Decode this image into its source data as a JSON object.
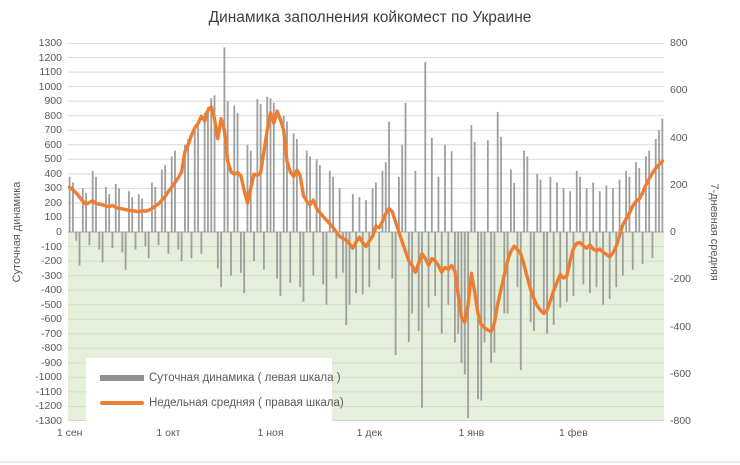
{
  "title": "Динамика заполнения койкомест по Украине",
  "colors": {
    "bar": "#9e9e9e",
    "line": "#ed7d31",
    "negative_area": "#e5efdb",
    "grid": "#d9d9d9",
    "grid_green": "#cfe0c0",
    "zero_line": "#a6a6a6",
    "edge_line": "#bfbfbf",
    "axis_text": "#595959",
    "title_text": "#3f3f3f"
  },
  "legend": [
    {
      "label": "Суточная динамика ( левая шкала )",
      "color": "#8f8f8f",
      "type": "bar"
    },
    {
      "label": "Недельная средняя ( правая шкала)",
      "color": "#ed7d31",
      "type": "line"
    }
  ],
  "chart_data": {
    "type": "bar+line",
    "title": "Динамика заполнения койкомест по Украине",
    "left_axis": {
      "label": "Суточная динамика",
      "min": -1300,
      "max": 1300,
      "step": 100
    },
    "right_axis": {
      "label": "7-дневная средняя",
      "min": -800,
      "max": 800,
      "step": 200
    },
    "x": {
      "unit": "day",
      "n_days": 181,
      "tick_labels": [
        "1 сен",
        "1 окт",
        "1 ноя",
        "1 дек",
        "1 янв",
        "1 фев"
      ],
      "tick_day_index": [
        0,
        30,
        61,
        91,
        122,
        153
      ]
    },
    "series": [
      {
        "name": "Суточная динамика ( левая шкала )",
        "type": "bar",
        "axis": "left",
        "values": [
          380,
          340,
          -60,
          -230,
          300,
          270,
          -90,
          420,
          380,
          -120,
          -210,
          310,
          260,
          -110,
          330,
          300,
          -140,
          -260,
          280,
          240,
          -120,
          260,
          230,
          -100,
          -180,
          340,
          310,
          -90,
          430,
          460,
          -150,
          520,
          560,
          -120,
          -200,
          600,
          640,
          -180,
          700,
          740,
          -150,
          820,
          860,
          920,
          940,
          -250,
          -380,
          1270,
          900,
          -300,
          870,
          820,
          -280,
          -420,
          600,
          560,
          -200,
          915,
          880,
          -260,
          930,
          920,
          890,
          -320,
          -440,
          800,
          760,
          -350,
          680,
          640,
          -380,
          -480,
          560,
          520,
          -300,
          500,
          460,
          -360,
          -500,
          420,
          380,
          -320,
          300,
          -280,
          -640,
          -500,
          260,
          -420,
          240,
          -430,
          220,
          -380,
          300,
          340,
          -260,
          420,
          480,
          760,
          -320,
          -846,
          380,
          600,
          888,
          -757,
          -560,
          420,
          -680,
          -1210,
          1170,
          -520,
          647,
          -440,
          380,
          -700,
          600,
          -500,
          555,
          -760,
          -700,
          -900,
          -980,
          -1280,
          736,
          620,
          -1150,
          -1160,
          -760,
          630,
          -900,
          -830,
          826,
          654,
          -560,
          -560,
          430,
          337,
          -380,
          -950,
          560,
          520,
          -620,
          -680,
          400,
          360,
          -560,
          -700,
          380,
          -640,
          340,
          -520,
          300,
          -480,
          280,
          -440,
          420,
          380,
          -360,
          300,
          -420,
          340,
          -380,
          280,
          -500,
          320,
          -460,
          300,
          -380,
          360,
          -300,
          420,
          380,
          -260,
          480,
          440,
          -220,
          520,
          560,
          -180,
          640,
          700,
          780
        ]
      },
      {
        "name": "Недельная средняя ( правая шкала)",
        "type": "line",
        "axis": "right",
        "values": [
          190,
          178,
          165,
          148,
          130,
          118,
          125,
          132,
          120,
          118,
          115,
          110,
          108,
          112,
          105,
          100,
          98,
          95,
          92,
          90,
          88,
          85,
          90,
          88,
          92,
          100,
          110,
          120,
          135,
          150,
          172,
          190,
          210,
          230,
          255,
          340,
          370,
          410,
          440,
          460,
          490,
          470,
          515,
          530,
          480,
          395,
          480,
          430,
          300,
          255,
          245,
          252,
          238,
          175,
          122,
          185,
          245,
          240,
          250,
          340,
          430,
          505,
          460,
          512,
          475,
          430,
          300,
          255,
          235,
          262,
          240,
          155,
          130,
          115,
          135,
          100,
          82,
          65,
          50,
          35,
          18,
          0,
          -18,
          -28,
          -35,
          -50,
          -68,
          -42,
          -22,
          -45,
          -62,
          -38,
          -18,
          25,
          18,
          45,
          78,
          100,
          85,
          42,
          0,
          -42,
          -82,
          -122,
          -142,
          -170,
          -132,
          -92,
          -112,
          -140,
          -112,
          -122,
          -142,
          -170,
          -150,
          -158,
          -142,
          -165,
          -265,
          -360,
          -381,
          -310,
          -175,
          -255,
          -345,
          -392,
          -405,
          -415,
          -422,
          -385,
          -305,
          -242,
          -182,
          -122,
          -82,
          -60,
          -75,
          -92,
          -140,
          -192,
          -242,
          -282,
          -312,
          -332,
          -345,
          -330,
          -290,
          -248,
          -212,
          -180,
          -195,
          -185,
          -120,
          -70,
          -48,
          -45,
          -58,
          -68,
          -55,
          -72,
          -80,
          -72,
          -85,
          -95,
          -105,
          -88,
          -60,
          -15,
          30,
          55,
          80,
          110,
          130,
          140,
          165,
          200,
          225,
          250,
          270,
          285,
          300
        ]
      }
    ]
  }
}
